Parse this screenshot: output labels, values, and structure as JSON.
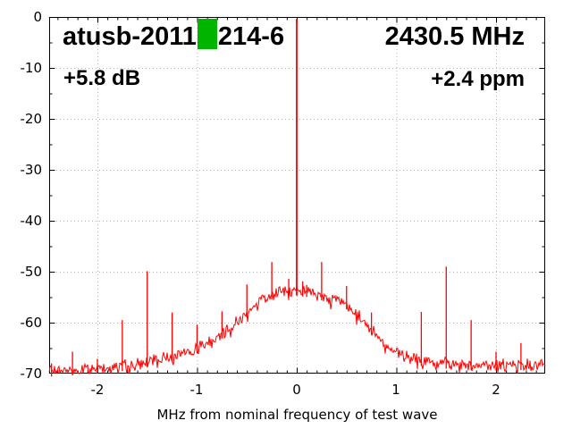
{
  "header": {
    "device_id_prefix": "atusb-2011",
    "device_id_suffix": "214-6",
    "center_frequency": "2430.5 MHz",
    "level_offset": "+5.8 dB",
    "frequency_error": "+2.4 ppm"
  },
  "axis": {
    "x_title": "MHz from nominal frequency of test wave",
    "x_tick_labels": [
      "-2",
      "-1",
      "0",
      "1",
      "2"
    ],
    "y_tick_labels": [
      "0",
      "-10",
      "-20",
      "-30",
      "-40",
      "-50",
      "-60",
      "-70"
    ]
  },
  "colors": {
    "background": "#ffffff",
    "trace": "#ff0000",
    "grid": "#b3b3b3",
    "border": "#000000",
    "text": "#000000",
    "marker": "#00b400"
  },
  "chart_data": {
    "type": "line",
    "title": "atusb-2011 214-6",
    "subtitle_left": "+5.8 dB",
    "subtitle_right": "+2.4 ppm",
    "center_frequency_label": "2430.5 MHz",
    "xlabel": "MHz from nominal frequency of test wave",
    "ylabel": "",
    "legend": "none",
    "grid": "dotted major",
    "x_range": [
      -2.484,
      2.493
    ],
    "y_range": [
      -70,
      0
    ],
    "x_ticks": [
      -2,
      -1,
      0,
      1,
      2
    ],
    "y_ticks": [
      0,
      -10,
      -20,
      -30,
      -40,
      -50,
      -60,
      -70
    ],
    "x_minor_tick_step": 0.1,
    "y_minor_tick_step": 5,
    "carrier_peak": {
      "freq_mhz": 0,
      "level_db": -0.4
    },
    "spurs_mhz_db": [
      [
        -2.46,
        -68.0
      ],
      [
        -2.25,
        -65.7
      ],
      [
        -2.0,
        -67.1
      ],
      [
        -1.75,
        -59.5
      ],
      [
        -1.5,
        -49.9
      ],
      [
        -1.25,
        -58.0
      ],
      [
        -1.0,
        -60.4
      ],
      [
        -0.75,
        -57.8
      ],
      [
        -0.5,
        -52.5
      ],
      [
        -0.25,
        -48.1
      ],
      [
        -0.08,
        -51.4
      ],
      [
        0.06,
        -51.9
      ],
      [
        0.1,
        -52.6
      ],
      [
        0.25,
        -48.1
      ],
      [
        0.5,
        -52.8
      ],
      [
        0.75,
        -58.0
      ],
      [
        1.25,
        -57.9
      ],
      [
        1.5,
        -49.0
      ],
      [
        1.75,
        -59.5
      ],
      [
        2.0,
        -65.7
      ],
      [
        2.25,
        -64.0
      ]
    ],
    "noise_envelope_mhz_db": [
      [
        -2.49,
        -69.6
      ],
      [
        -2.2,
        -69.3
      ],
      [
        -1.9,
        -68.8
      ],
      [
        -1.6,
        -68.2
      ],
      [
        -1.4,
        -67.3
      ],
      [
        -1.2,
        -66.2
      ],
      [
        -1.0,
        -65.0
      ],
      [
        -0.85,
        -63.5
      ],
      [
        -0.7,
        -61.4
      ],
      [
        -0.55,
        -58.8
      ],
      [
        -0.45,
        -57.0
      ],
      [
        -0.35,
        -55.5
      ],
      [
        -0.25,
        -54.4
      ],
      [
        -0.12,
        -53.8
      ],
      [
        0.0,
        -53.7
      ],
      [
        0.15,
        -54.1
      ],
      [
        0.3,
        -54.9
      ],
      [
        0.5,
        -56.4
      ],
      [
        0.65,
        -59.3
      ],
      [
        0.8,
        -62.4
      ],
      [
        0.95,
        -65.2
      ],
      [
        1.1,
        -66.9
      ],
      [
        1.3,
        -67.7
      ],
      [
        1.6,
        -68.2
      ],
      [
        2.0,
        -68.4
      ],
      [
        2.49,
        -68.2
      ]
    ],
    "noise_jitter_db": 1.4
  }
}
